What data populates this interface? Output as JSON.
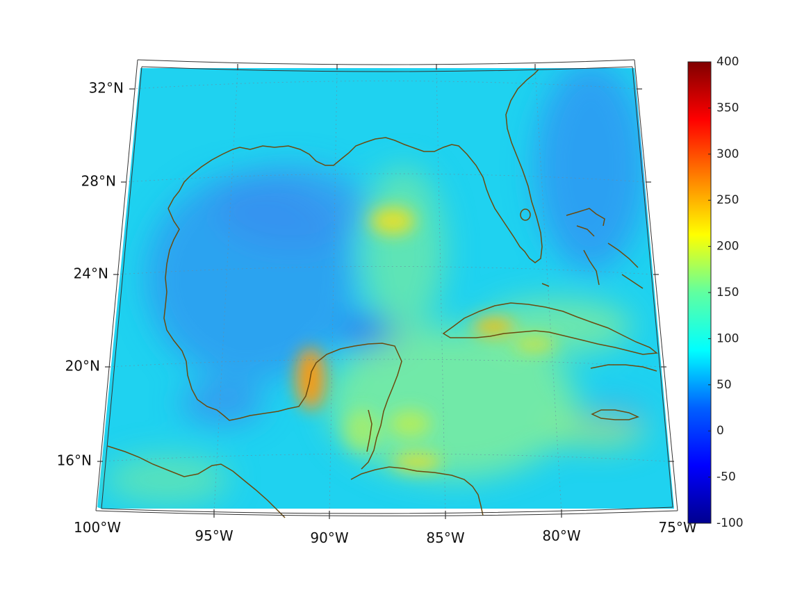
{
  "map": {
    "region": "Gulf of Mexico and Caribbean",
    "lat_ticks": [
      {
        "value": 32,
        "label": "32°N"
      },
      {
        "value": 28,
        "label": "28°N"
      },
      {
        "value": 24,
        "label": "24°N"
      },
      {
        "value": 20,
        "label": "20°N"
      },
      {
        "value": 16,
        "label": "16°N"
      }
    ],
    "lon_ticks": [
      {
        "value": -100,
        "label": "100°W"
      },
      {
        "value": -95,
        "label": "95°W"
      },
      {
        "value": -90,
        "label": "90°W"
      },
      {
        "value": -85,
        "label": "85°W"
      },
      {
        "value": -80,
        "label": "80°W"
      },
      {
        "value": -75,
        "label": "75°W"
      }
    ],
    "coastline_color": "#6b4a0e",
    "grid": true,
    "field_hotspots": [
      {
        "name": "yucatan-west",
        "lon": -91.0,
        "lat": 19.6,
        "value": 255
      },
      {
        "name": "central-gulf",
        "lon": -87.3,
        "lat": 26.5,
        "value": 205
      },
      {
        "name": "cuba-central",
        "lon": -82.5,
        "lat": 21.9,
        "value": 215
      },
      {
        "name": "honduras-coast",
        "lon": -86.5,
        "lat": 16.0,
        "value": 190
      },
      {
        "name": "west-gulf-low",
        "lon": -88.5,
        "lat": 21.5,
        "value": 25
      }
    ]
  },
  "colorbar": {
    "min": -100,
    "max": 400,
    "colormap": "jet",
    "ticks": [
      "400",
      "350",
      "300",
      "250",
      "200",
      "150",
      "100",
      "50",
      "0",
      "-50",
      "-100"
    ]
  }
}
